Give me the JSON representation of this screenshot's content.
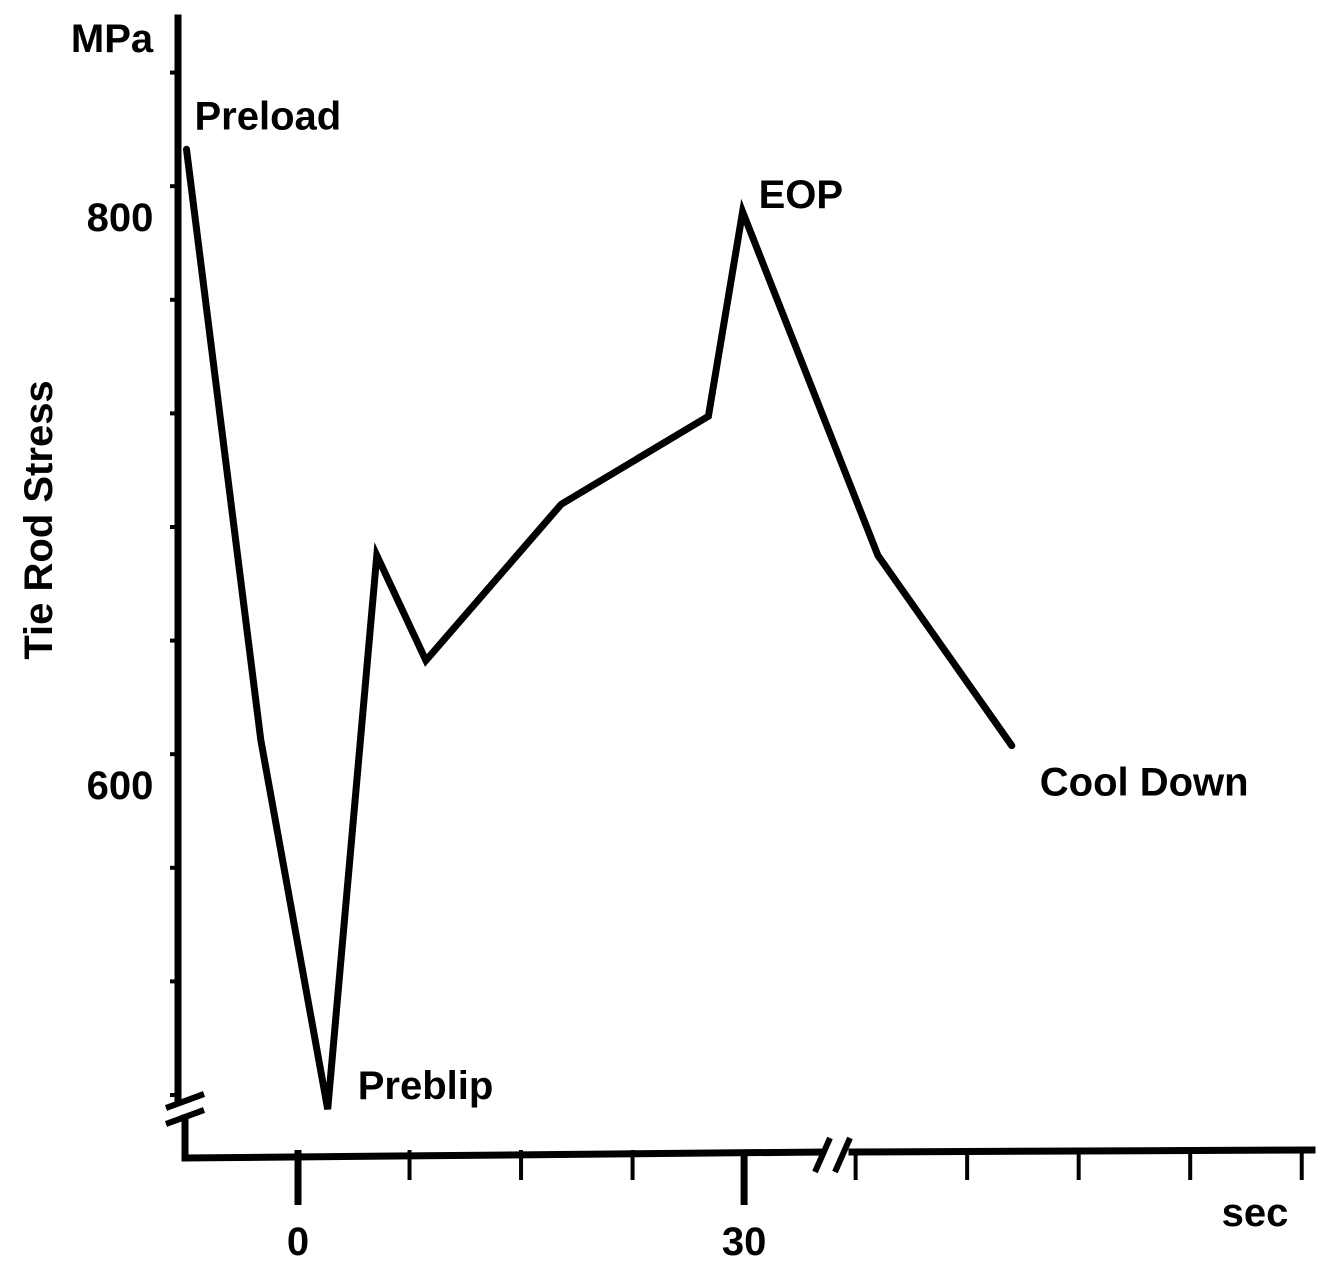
{
  "chart_data": {
    "type": "line",
    "title": "",
    "xlabel": "sec",
    "ylabel": "Tie Rod Stress",
    "yunit": "MPa",
    "x_tick_labels": [
      {
        "value": 0,
        "label": "0"
      },
      {
        "value": 30,
        "label": "30"
      }
    ],
    "y_tick_labels": [
      {
        "value": 600,
        "label": "600"
      },
      {
        "value": 800,
        "label": "800"
      }
    ],
    "xlim": [
      -7.5,
      68
    ],
    "ylim": [
      483,
      935
    ],
    "x_minor_tick_step": 7.5,
    "y_minor_tick_step": 40,
    "axis_breaks": [
      "x",
      "y"
    ],
    "grid": false,
    "legend": "none",
    "series": [
      {
        "points": [
          {
            "x": -7.5,
            "y": 833
          },
          {
            "x": -2.5,
            "y": 625
          },
          {
            "x": 2,
            "y": 495
          },
          {
            "x": 5.3,
            "y": 690
          },
          {
            "x": 8.6,
            "y": 653
          },
          {
            "x": 17.7,
            "y": 708
          },
          {
            "x": 27.6,
            "y": 739
          },
          {
            "x": 29.9,
            "y": 811
          },
          {
            "x": 39,
            "y": 690
          },
          {
            "x": 48,
            "y": 623
          }
        ]
      }
    ],
    "annotations": [
      {
        "text": "Preload",
        "x": -7.5,
        "y": 833
      },
      {
        "text": "EOP",
        "x": 29.9,
        "y": 811
      },
      {
        "text": "Preblip",
        "x": 2,
        "y": 495
      },
      {
        "text": "Cool Down",
        "x": 48,
        "y": 623
      }
    ]
  }
}
